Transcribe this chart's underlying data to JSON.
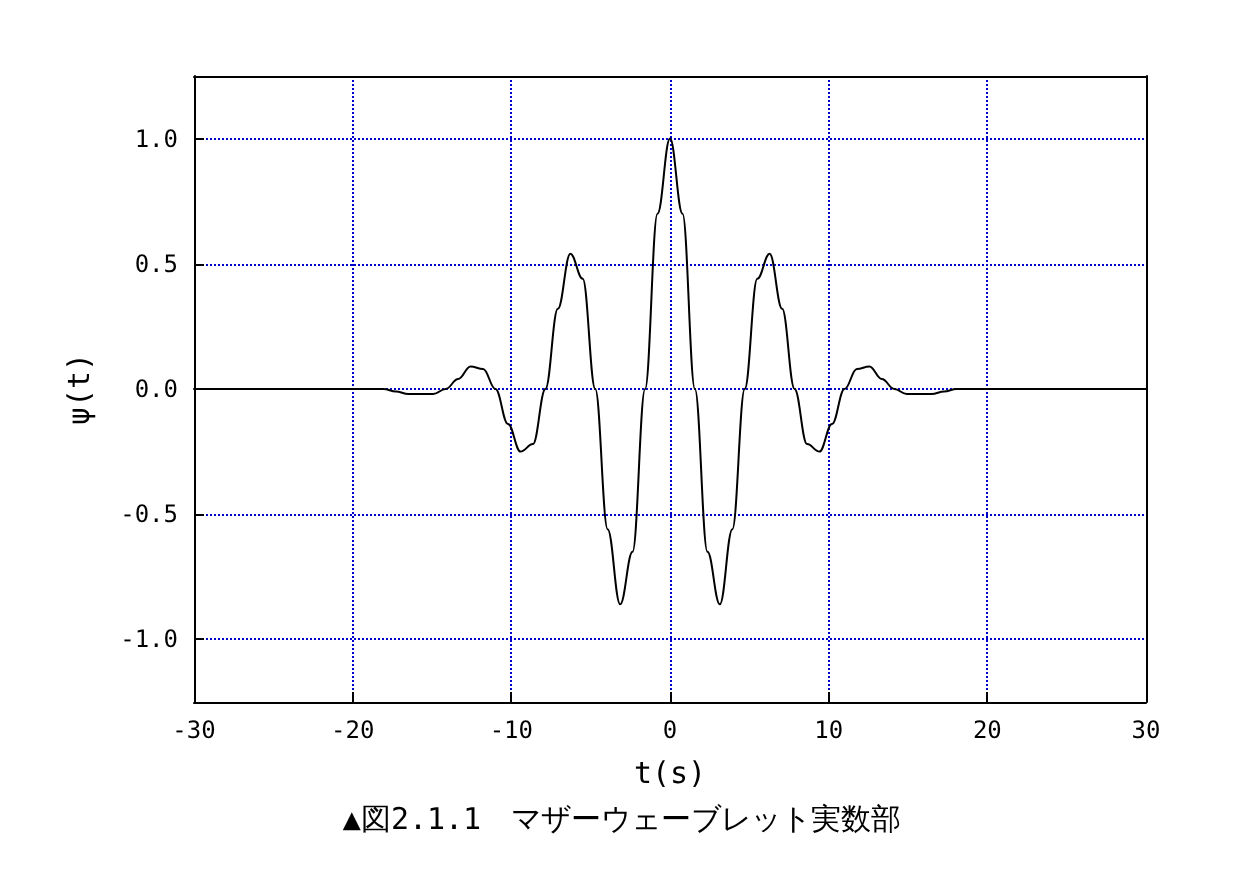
{
  "chart_data": {
    "type": "line",
    "xlabel": "t(s)",
    "ylabel": "ψ(t)",
    "annotations": [
      "▲図2.1.1　マザーウェーブレット実数部"
    ],
    "xlim": [
      -30,
      30
    ],
    "xticks": [
      -30,
      -20,
      -10,
      0,
      10,
      20,
      30
    ],
    "ylim": [
      -1.25,
      1.25
    ],
    "yticks": [
      {
        "value": -1,
        "label": "-1.0"
      },
      {
        "value": -0.5,
        "label": "-0.5"
      },
      {
        "value": 0,
        "label": "0.0"
      },
      {
        "value": 0.5,
        "label": "0.5"
      },
      {
        "value": 1,
        "label": "1.0"
      }
    ],
    "grid": true,
    "marker": "none",
    "line_style": "solid",
    "series": [
      {
        "color": "#000000",
        "x": [
          -30,
          -18.85,
          -18.06,
          -17.28,
          -16.49,
          -15.71,
          -14.92,
          -14.14,
          -13.35,
          -12.57,
          -11.78,
          -11.0,
          -10.21,
          -9.42,
          -8.64,
          -7.85,
          -7.07,
          -6.28,
          -5.5,
          -4.71,
          -3.93,
          -3.14,
          -2.36,
          -1.57,
          -0.79,
          0,
          0.79,
          1.57,
          2.36,
          3.14,
          3.93,
          4.71,
          5.5,
          6.28,
          7.07,
          7.85,
          8.64,
          9.42,
          10.21,
          11.0,
          11.78,
          12.57,
          13.35,
          14.14,
          14.92,
          15.71,
          16.49,
          17.28,
          18.06,
          18.85,
          30
        ],
        "values": [
          0,
          0,
          0,
          -0.01,
          -0.02,
          -0.02,
          -0.02,
          0,
          0.04,
          0.09,
          0.08,
          0,
          -0.14,
          -0.25,
          -0.22,
          0,
          0.32,
          0.54,
          0.44,
          0,
          -0.56,
          -0.86,
          -0.65,
          0,
          0.7,
          1,
          0.7,
          0,
          -0.65,
          -0.86,
          -0.56,
          0,
          0.44,
          0.54,
          0.32,
          0,
          -0.22,
          -0.25,
          -0.14,
          0,
          0.08,
          0.09,
          0.04,
          0,
          -0.02,
          -0.02,
          -0.02,
          -0.01,
          0,
          0,
          0
        ]
      }
    ]
  }
}
